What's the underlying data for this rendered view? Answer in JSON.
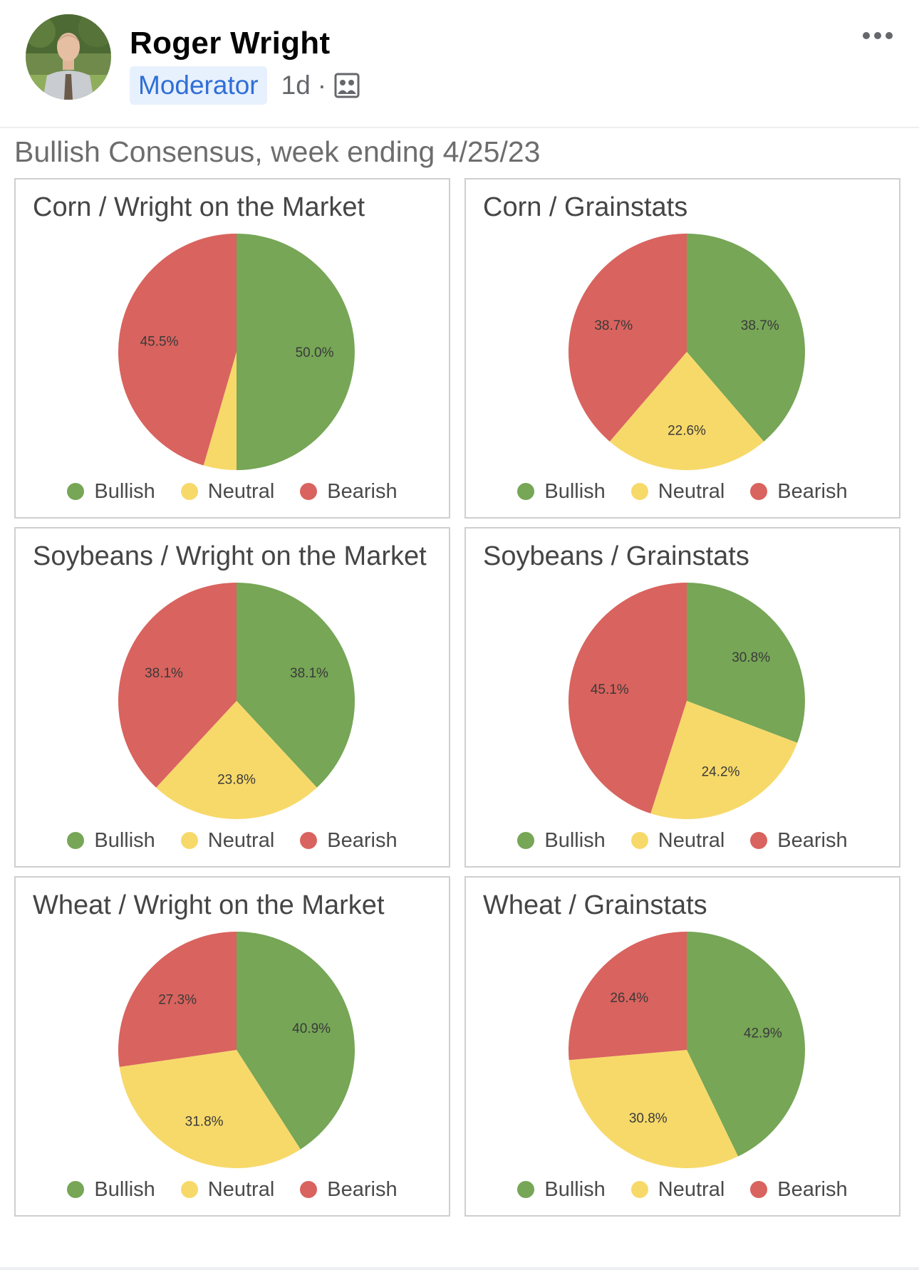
{
  "post": {
    "author": "Roger Wright",
    "role": "Moderator",
    "time": "1d",
    "separator": "·",
    "icons": {
      "group": "group-icon",
      "more": "more-options-icon"
    }
  },
  "colors": {
    "bullish": "#76a656",
    "neutral": "#f7d96a",
    "bearish": "#d9635e"
  },
  "image_title": "Bullish Consensus, week ending 4/25/23",
  "chart_data": [
    {
      "type": "pie",
      "title": "Corn / Wright on the Market",
      "labels": [
        "Bullish",
        "Neutral",
        "Bearish"
      ],
      "values": [
        50.0,
        4.5,
        45.5
      ],
      "value_labels": [
        "50.0%",
        "",
        "45.5%"
      ]
    },
    {
      "type": "pie",
      "title": "Corn / Grainstats",
      "labels": [
        "Bullish",
        "Neutral",
        "Bearish"
      ],
      "values": [
        38.7,
        22.6,
        38.7
      ],
      "value_labels": [
        "38.7%",
        "22.6%",
        "38.7%"
      ]
    },
    {
      "type": "pie",
      "title": "Soybeans / Wright on the Market",
      "labels": [
        "Bullish",
        "Neutral",
        "Bearish"
      ],
      "values": [
        38.1,
        23.8,
        38.1
      ],
      "value_labels": [
        "38.1%",
        "23.8%",
        "38.1%"
      ]
    },
    {
      "type": "pie",
      "title": "Soybeans / Grainstats",
      "labels": [
        "Bullish",
        "Neutral",
        "Bearish"
      ],
      "values": [
        30.8,
        24.2,
        45.1
      ],
      "value_labels": [
        "30.8%",
        "24.2%",
        "45.1%"
      ]
    },
    {
      "type": "pie",
      "title": "Wheat / Wright on the Market",
      "labels": [
        "Bullish",
        "Neutral",
        "Bearish"
      ],
      "values": [
        40.9,
        31.8,
        27.3
      ],
      "value_labels": [
        "40.9%",
        "31.8%",
        "27.3%"
      ]
    },
    {
      "type": "pie",
      "title": "Wheat / Grainstats",
      "labels": [
        "Bullish",
        "Neutral",
        "Bearish"
      ],
      "values": [
        42.9,
        30.8,
        26.4
      ],
      "value_labels": [
        "42.9%",
        "30.8%",
        "26.4%"
      ]
    }
  ]
}
